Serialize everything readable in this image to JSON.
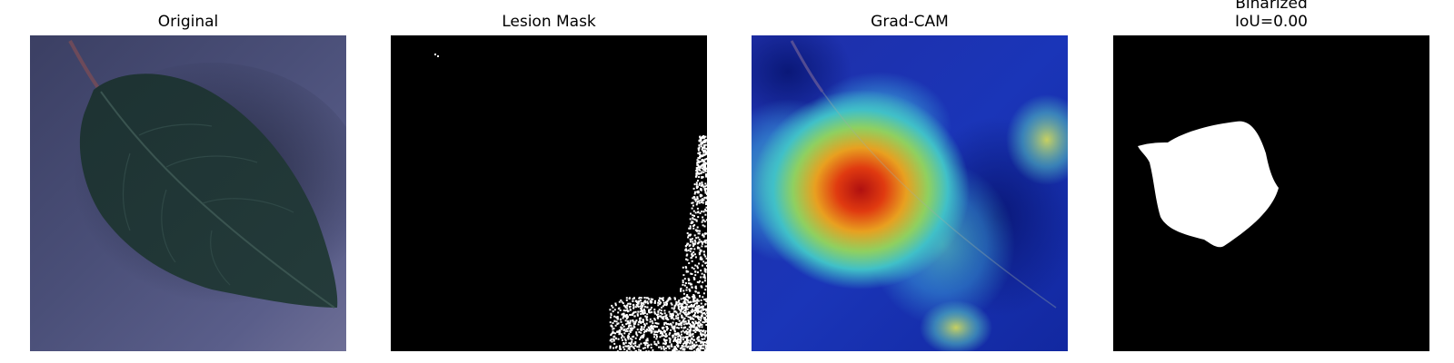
{
  "panels": [
    {
      "title": "Original"
    },
    {
      "title": "Lesion Mask"
    },
    {
      "title": "Grad-CAM"
    },
    {
      "title_lines": [
        "Binarized",
        "IoU=0.00"
      ]
    }
  ]
}
